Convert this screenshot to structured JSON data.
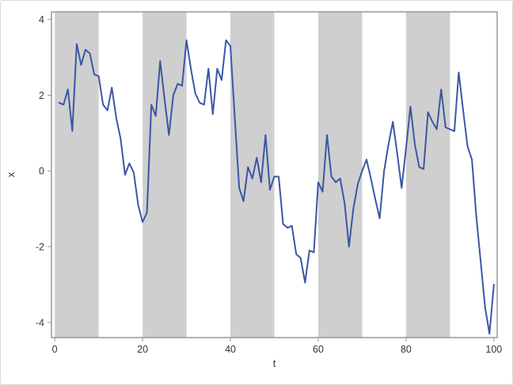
{
  "chart_data": {
    "type": "line",
    "title": "",
    "xlabel": "t",
    "ylabel": "x",
    "xlim": [
      -0.75,
      100.75
    ],
    "ylim": [
      -4.4,
      4.2
    ],
    "x_ticks": [
      0,
      20,
      40,
      60,
      80,
      100
    ],
    "y_ticks": [
      4,
      2,
      0,
      -2,
      -4
    ],
    "grid": false,
    "legend": "none",
    "bands": {
      "color": "#cfcfcf",
      "intervals": [
        [
          0,
          10
        ],
        [
          20,
          30
        ],
        [
          40,
          50
        ],
        [
          60,
          70
        ],
        [
          80,
          90
        ]
      ]
    },
    "series": [
      {
        "name": "x",
        "color": "#3b56a5",
        "x": [
          1,
          2,
          3,
          4,
          5,
          6,
          7,
          8,
          9,
          10,
          11,
          12,
          13,
          14,
          15,
          16,
          17,
          18,
          19,
          20,
          21,
          22,
          23,
          24,
          25,
          26,
          27,
          28,
          29,
          30,
          31,
          32,
          33,
          34,
          35,
          36,
          37,
          38,
          39,
          40,
          41,
          42,
          43,
          44,
          45,
          46,
          47,
          48,
          49,
          50,
          51,
          52,
          53,
          54,
          55,
          56,
          57,
          58,
          59,
          60,
          61,
          62,
          63,
          64,
          65,
          66,
          67,
          68,
          69,
          70,
          71,
          72,
          73,
          74,
          75,
          76,
          77,
          78,
          79,
          80,
          81,
          82,
          83,
          84,
          85,
          86,
          87,
          88,
          89,
          90,
          91,
          92,
          93,
          94,
          95,
          96,
          97,
          98,
          99,
          100
        ],
        "values": [
          1.8,
          1.75,
          2.15,
          1.05,
          3.35,
          2.8,
          3.2,
          3.1,
          2.55,
          2.5,
          1.75,
          1.6,
          2.2,
          1.4,
          0.85,
          -0.1,
          0.2,
          -0.05,
          -0.9,
          -1.35,
          -1.1,
          1.75,
          1.45,
          2.9,
          1.9,
          0.95,
          2.0,
          2.3,
          2.25,
          3.45,
          2.7,
          2.05,
          1.8,
          1.75,
          2.7,
          1.5,
          2.7,
          2.4,
          3.45,
          3.3,
          1.4,
          -0.45,
          -0.8,
          0.1,
          -0.2,
          0.35,
          -0.3,
          0.95,
          -0.5,
          -0.15,
          -0.15,
          -1.4,
          -1.5,
          -1.45,
          -2.2,
          -2.3,
          -2.95,
          -2.1,
          -2.15,
          -0.3,
          -0.55,
          0.95,
          -0.15,
          -0.3,
          -0.2,
          -0.85,
          -2.0,
          -1.0,
          -0.35,
          0.0,
          0.3,
          -0.2,
          -0.75,
          -1.25,
          0.0,
          0.7,
          1.3,
          0.45,
          -0.45,
          0.6,
          1.7,
          0.7,
          0.1,
          0.05,
          1.55,
          1.3,
          1.1,
          2.15,
          1.15,
          1.1,
          1.05,
          2.6,
          1.6,
          0.65,
          0.3,
          -1.2,
          -2.4,
          -3.6,
          -4.3,
          -3.0
        ]
      }
    ]
  },
  "styles": {
    "background": "#ffffff",
    "canvas_border": "#d7dadd",
    "frame_border": "#8d9296",
    "tick_color": "#8d9296",
    "band_color": "#cfcfcf",
    "line_color": "#3b56a5",
    "text_color": "#353535"
  }
}
